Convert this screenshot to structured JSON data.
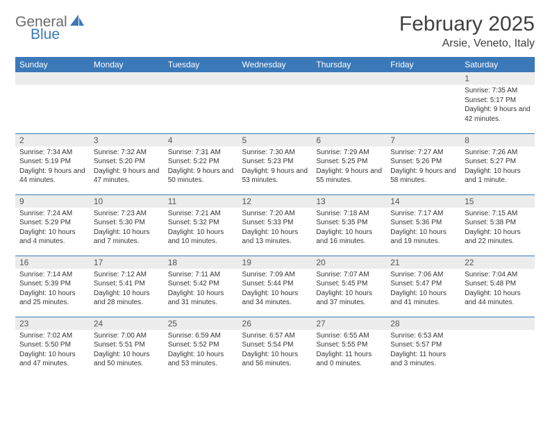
{
  "logo": {
    "part1": "General",
    "part2": "Blue"
  },
  "title": "February 2025",
  "location": "Arsie, Veneto, Italy",
  "colors": {
    "header_bg": "#3b78b8",
    "header_text": "#ffffff",
    "daynum_bg": "#ececec",
    "row_border": "#3b78b8",
    "body_text": "#333333",
    "title_text": "#404040",
    "logo_gray": "#6a6a6a",
    "logo_blue": "#3b78b8",
    "page_bg": "#ffffff"
  },
  "typography": {
    "title_fontsize": 30,
    "location_fontsize": 16,
    "header_fontsize": 12,
    "daynum_fontsize": 12,
    "cell_fontsize": 10,
    "logo_fontsize": 21
  },
  "weekdays": [
    "Sunday",
    "Monday",
    "Tuesday",
    "Wednesday",
    "Thursday",
    "Friday",
    "Saturday"
  ],
  "weeks": [
    [
      {
        "n": "",
        "sr": "",
        "ss": "",
        "dl": ""
      },
      {
        "n": "",
        "sr": "",
        "ss": "",
        "dl": ""
      },
      {
        "n": "",
        "sr": "",
        "ss": "",
        "dl": ""
      },
      {
        "n": "",
        "sr": "",
        "ss": "",
        "dl": ""
      },
      {
        "n": "",
        "sr": "",
        "ss": "",
        "dl": ""
      },
      {
        "n": "",
        "sr": "",
        "ss": "",
        "dl": ""
      },
      {
        "n": "1",
        "sr": "Sunrise: 7:35 AM",
        "ss": "Sunset: 5:17 PM",
        "dl": "Daylight: 9 hours and 42 minutes."
      }
    ],
    [
      {
        "n": "2",
        "sr": "Sunrise: 7:34 AM",
        "ss": "Sunset: 5:19 PM",
        "dl": "Daylight: 9 hours and 44 minutes."
      },
      {
        "n": "3",
        "sr": "Sunrise: 7:32 AM",
        "ss": "Sunset: 5:20 PM",
        "dl": "Daylight: 9 hours and 47 minutes."
      },
      {
        "n": "4",
        "sr": "Sunrise: 7:31 AM",
        "ss": "Sunset: 5:22 PM",
        "dl": "Daylight: 9 hours and 50 minutes."
      },
      {
        "n": "5",
        "sr": "Sunrise: 7:30 AM",
        "ss": "Sunset: 5:23 PM",
        "dl": "Daylight: 9 hours and 53 minutes."
      },
      {
        "n": "6",
        "sr": "Sunrise: 7:29 AM",
        "ss": "Sunset: 5:25 PM",
        "dl": "Daylight: 9 hours and 55 minutes."
      },
      {
        "n": "7",
        "sr": "Sunrise: 7:27 AM",
        "ss": "Sunset: 5:26 PM",
        "dl": "Daylight: 9 hours and 58 minutes."
      },
      {
        "n": "8",
        "sr": "Sunrise: 7:26 AM",
        "ss": "Sunset: 5:27 PM",
        "dl": "Daylight: 10 hours and 1 minute."
      }
    ],
    [
      {
        "n": "9",
        "sr": "Sunrise: 7:24 AM",
        "ss": "Sunset: 5:29 PM",
        "dl": "Daylight: 10 hours and 4 minutes."
      },
      {
        "n": "10",
        "sr": "Sunrise: 7:23 AM",
        "ss": "Sunset: 5:30 PM",
        "dl": "Daylight: 10 hours and 7 minutes."
      },
      {
        "n": "11",
        "sr": "Sunrise: 7:21 AM",
        "ss": "Sunset: 5:32 PM",
        "dl": "Daylight: 10 hours and 10 minutes."
      },
      {
        "n": "12",
        "sr": "Sunrise: 7:20 AM",
        "ss": "Sunset: 5:33 PM",
        "dl": "Daylight: 10 hours and 13 minutes."
      },
      {
        "n": "13",
        "sr": "Sunrise: 7:18 AM",
        "ss": "Sunset: 5:35 PM",
        "dl": "Daylight: 10 hours and 16 minutes."
      },
      {
        "n": "14",
        "sr": "Sunrise: 7:17 AM",
        "ss": "Sunset: 5:36 PM",
        "dl": "Daylight: 10 hours and 19 minutes."
      },
      {
        "n": "15",
        "sr": "Sunrise: 7:15 AM",
        "ss": "Sunset: 5:38 PM",
        "dl": "Daylight: 10 hours and 22 minutes."
      }
    ],
    [
      {
        "n": "16",
        "sr": "Sunrise: 7:14 AM",
        "ss": "Sunset: 5:39 PM",
        "dl": "Daylight: 10 hours and 25 minutes."
      },
      {
        "n": "17",
        "sr": "Sunrise: 7:12 AM",
        "ss": "Sunset: 5:41 PM",
        "dl": "Daylight: 10 hours and 28 minutes."
      },
      {
        "n": "18",
        "sr": "Sunrise: 7:11 AM",
        "ss": "Sunset: 5:42 PM",
        "dl": "Daylight: 10 hours and 31 minutes."
      },
      {
        "n": "19",
        "sr": "Sunrise: 7:09 AM",
        "ss": "Sunset: 5:44 PM",
        "dl": "Daylight: 10 hours and 34 minutes."
      },
      {
        "n": "20",
        "sr": "Sunrise: 7:07 AM",
        "ss": "Sunset: 5:45 PM",
        "dl": "Daylight: 10 hours and 37 minutes."
      },
      {
        "n": "21",
        "sr": "Sunrise: 7:06 AM",
        "ss": "Sunset: 5:47 PM",
        "dl": "Daylight: 10 hours and 41 minutes."
      },
      {
        "n": "22",
        "sr": "Sunrise: 7:04 AM",
        "ss": "Sunset: 5:48 PM",
        "dl": "Daylight: 10 hours and 44 minutes."
      }
    ],
    [
      {
        "n": "23",
        "sr": "Sunrise: 7:02 AM",
        "ss": "Sunset: 5:50 PM",
        "dl": "Daylight: 10 hours and 47 minutes."
      },
      {
        "n": "24",
        "sr": "Sunrise: 7:00 AM",
        "ss": "Sunset: 5:51 PM",
        "dl": "Daylight: 10 hours and 50 minutes."
      },
      {
        "n": "25",
        "sr": "Sunrise: 6:59 AM",
        "ss": "Sunset: 5:52 PM",
        "dl": "Daylight: 10 hours and 53 minutes."
      },
      {
        "n": "26",
        "sr": "Sunrise: 6:57 AM",
        "ss": "Sunset: 5:54 PM",
        "dl": "Daylight: 10 hours and 56 minutes."
      },
      {
        "n": "27",
        "sr": "Sunrise: 6:55 AM",
        "ss": "Sunset: 5:55 PM",
        "dl": "Daylight: 11 hours and 0 minutes."
      },
      {
        "n": "28",
        "sr": "Sunrise: 6:53 AM",
        "ss": "Sunset: 5:57 PM",
        "dl": "Daylight: 11 hours and 3 minutes."
      },
      {
        "n": "",
        "sr": "",
        "ss": "",
        "dl": ""
      }
    ]
  ]
}
